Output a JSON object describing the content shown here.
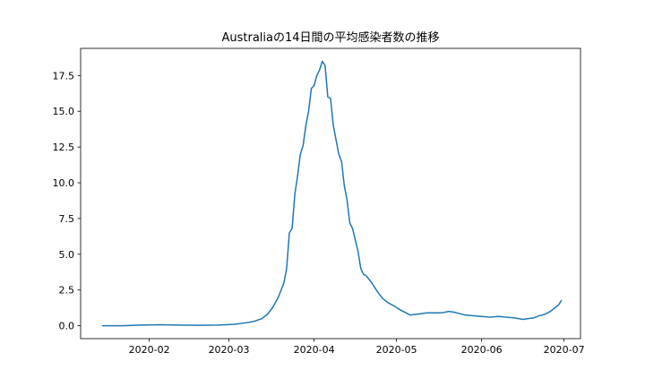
{
  "chart_data": {
    "type": "line",
    "title": "Australiaの14日間の平均感染者数の推移",
    "xlabel": "",
    "ylabel": "",
    "xlim": [
      "2020-01-07",
      "2020-07-07"
    ],
    "ylim": [
      -0.9,
      19.4
    ],
    "grid": false,
    "x_ticks": [
      {
        "date": "2020-02-01",
        "label": "2020-02"
      },
      {
        "date": "2020-03-01",
        "label": "2020-03"
      },
      {
        "date": "2020-04-01",
        "label": "2020-04"
      },
      {
        "date": "2020-05-01",
        "label": "2020-05"
      },
      {
        "date": "2020-06-01",
        "label": "2020-06"
      },
      {
        "date": "2020-07-01",
        "label": "2020-07"
      }
    ],
    "y_ticks": [
      {
        "value": 0.0,
        "label": "0.0"
      },
      {
        "value": 2.5,
        "label": "2.5"
      },
      {
        "value": 5.0,
        "label": "5.0"
      },
      {
        "value": 7.5,
        "label": "7.5"
      },
      {
        "value": 10.0,
        "label": "10.0"
      },
      {
        "value": 12.5,
        "label": "12.5"
      },
      {
        "value": 15.0,
        "label": "15.0"
      },
      {
        "value": 17.5,
        "label": "17.5"
      }
    ],
    "series": [
      {
        "color": "#1f77b4",
        "points": [
          [
            "2020-01-15",
            0.0
          ],
          [
            "2020-01-22",
            0.0
          ],
          [
            "2020-01-29",
            0.05
          ],
          [
            "2020-02-05",
            0.07
          ],
          [
            "2020-02-12",
            0.05
          ],
          [
            "2020-02-19",
            0.03
          ],
          [
            "2020-02-26",
            0.05
          ],
          [
            "2020-03-03",
            0.1
          ],
          [
            "2020-03-07",
            0.2
          ],
          [
            "2020-03-10",
            0.3
          ],
          [
            "2020-03-13",
            0.5
          ],
          [
            "2020-03-15",
            0.8
          ],
          [
            "2020-03-17",
            1.3
          ],
          [
            "2020-03-19",
            2.0
          ],
          [
            "2020-03-21",
            3.0
          ],
          [
            "2020-03-22",
            4.0
          ],
          [
            "2020-03-23",
            6.5
          ],
          [
            "2020-03-24",
            6.8
          ],
          [
            "2020-03-25",
            9.2
          ],
          [
            "2020-03-26",
            10.5
          ],
          [
            "2020-03-27",
            12.0
          ],
          [
            "2020-03-28",
            12.6
          ],
          [
            "2020-03-29",
            14.0
          ],
          [
            "2020-03-30",
            15.0
          ],
          [
            "2020-03-31",
            16.6
          ],
          [
            "2020-04-01",
            16.8
          ],
          [
            "2020-04-02",
            17.5
          ],
          [
            "2020-04-03",
            17.9
          ],
          [
            "2020-04-04",
            18.5
          ],
          [
            "2020-04-05",
            18.2
          ],
          [
            "2020-04-06",
            16.0
          ],
          [
            "2020-04-07",
            15.9
          ],
          [
            "2020-04-08",
            14.0
          ],
          [
            "2020-04-10",
            12.0
          ],
          [
            "2020-04-11",
            11.5
          ],
          [
            "2020-04-12",
            9.8
          ],
          [
            "2020-04-13",
            8.8
          ],
          [
            "2020-04-14",
            7.2
          ],
          [
            "2020-04-15",
            6.8
          ],
          [
            "2020-04-16",
            6.0
          ],
          [
            "2020-04-17",
            5.2
          ],
          [
            "2020-04-18",
            4.0
          ],
          [
            "2020-04-19",
            3.6
          ],
          [
            "2020-04-20",
            3.5
          ],
          [
            "2020-04-22",
            3.0
          ],
          [
            "2020-04-24",
            2.4
          ],
          [
            "2020-04-26",
            1.9
          ],
          [
            "2020-04-28",
            1.6
          ],
          [
            "2020-04-30",
            1.4
          ],
          [
            "2020-05-02",
            1.15
          ],
          [
            "2020-05-04",
            0.95
          ],
          [
            "2020-05-06",
            0.75
          ],
          [
            "2020-05-08",
            0.8
          ],
          [
            "2020-05-10",
            0.85
          ],
          [
            "2020-05-12",
            0.9
          ],
          [
            "2020-05-15",
            0.9
          ],
          [
            "2020-05-18",
            0.92
          ],
          [
            "2020-05-20",
            1.0
          ],
          [
            "2020-05-22",
            0.95
          ],
          [
            "2020-05-24",
            0.85
          ],
          [
            "2020-05-26",
            0.75
          ],
          [
            "2020-05-29",
            0.7
          ],
          [
            "2020-06-01",
            0.65
          ],
          [
            "2020-06-04",
            0.6
          ],
          [
            "2020-06-07",
            0.65
          ],
          [
            "2020-06-10",
            0.6
          ],
          [
            "2020-06-13",
            0.55
          ],
          [
            "2020-06-16",
            0.45
          ],
          [
            "2020-06-18",
            0.5
          ],
          [
            "2020-06-20",
            0.55
          ],
          [
            "2020-06-22",
            0.7
          ],
          [
            "2020-06-24",
            0.8
          ],
          [
            "2020-06-26",
            1.0
          ],
          [
            "2020-06-28",
            1.3
          ],
          [
            "2020-06-29",
            1.45
          ],
          [
            "2020-06-30",
            1.75
          ]
        ]
      }
    ]
  }
}
